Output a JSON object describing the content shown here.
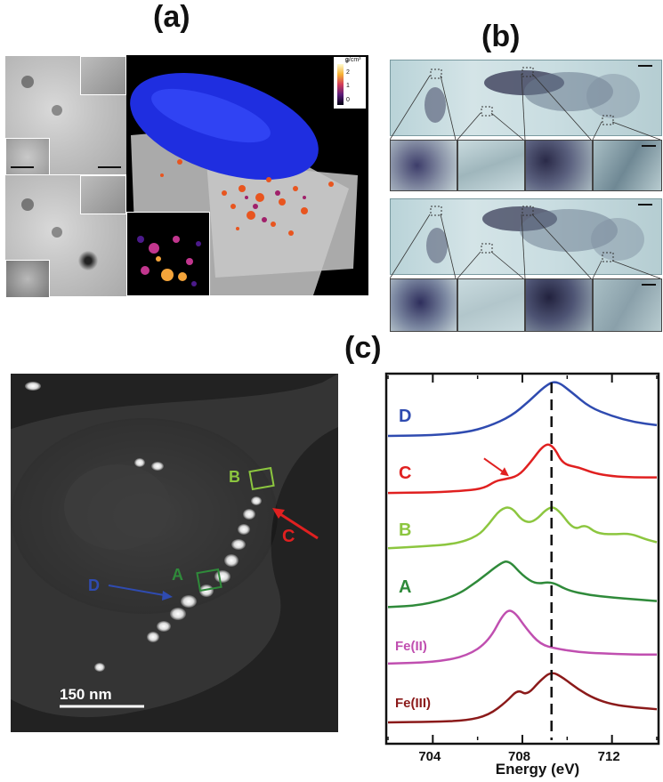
{
  "panels": {
    "a": {
      "letter": "(a)"
    },
    "b": {
      "letter": "(b)"
    },
    "c": {
      "letter": "(c)"
    }
  },
  "panel_a": {
    "colorbar": {
      "unit": "g/cm³",
      "ticks": [
        "3",
        "2",
        "1",
        "0"
      ]
    }
  },
  "panel_c_image": {
    "scale_bar": "150 nm",
    "labels": {
      "A": "A",
      "B": "B",
      "C": "C",
      "D": "D"
    },
    "colors": {
      "A": "#2f8a3a",
      "B": "#8cc63f",
      "C": "#e02020",
      "D": "#2f4bb0"
    }
  },
  "chart_data": {
    "type": "line",
    "xlabel": "Energy (eV)",
    "xlim": [
      702,
      714
    ],
    "x_ticks": [
      704,
      708,
      712
    ],
    "vertical_dashed_line_x": 709.3,
    "grid": false,
    "series": [
      {
        "name": "D",
        "color": "#2f4bb0",
        "offset": 5,
        "points": [
          [
            702,
            0.02
          ],
          [
            704,
            0.03
          ],
          [
            705.5,
            0.08
          ],
          [
            706.5,
            0.18
          ],
          [
            707.5,
            0.35
          ],
          [
            708.3,
            0.6
          ],
          [
            709.0,
            0.85
          ],
          [
            709.5,
            0.95
          ],
          [
            710.2,
            0.75
          ],
          [
            711,
            0.5
          ],
          [
            712,
            0.35
          ],
          [
            713,
            0.25
          ],
          [
            714,
            0.2
          ]
        ]
      },
      {
        "name": "C",
        "color": "#e02020",
        "offset": 4,
        "points": [
          [
            702,
            0.02
          ],
          [
            704,
            0.03
          ],
          [
            705.5,
            0.06
          ],
          [
            706.3,
            0.1
          ],
          [
            706.8,
            0.22
          ],
          [
            707.2,
            0.25
          ],
          [
            707.8,
            0.3
          ],
          [
            708.3,
            0.5
          ],
          [
            709.0,
            0.85
          ],
          [
            709.4,
            0.8
          ],
          [
            709.8,
            0.5
          ],
          [
            710.5,
            0.45
          ],
          [
            711.2,
            0.35
          ],
          [
            712,
            0.3
          ],
          [
            713,
            0.28
          ],
          [
            714,
            0.28
          ]
        ]
      },
      {
        "name": "B",
        "color": "#8cc63f",
        "offset": 3,
        "points": [
          [
            702,
            0.05
          ],
          [
            703.5,
            0.08
          ],
          [
            705,
            0.12
          ],
          [
            706,
            0.25
          ],
          [
            706.5,
            0.45
          ],
          [
            707,
            0.7
          ],
          [
            707.5,
            0.75
          ],
          [
            708,
            0.5
          ],
          [
            708.5,
            0.48
          ],
          [
            709.2,
            0.75
          ],
          [
            709.6,
            0.7
          ],
          [
            710.3,
            0.35
          ],
          [
            710.8,
            0.45
          ],
          [
            711.3,
            0.3
          ],
          [
            712,
            0.28
          ],
          [
            712.8,
            0.3
          ],
          [
            713.5,
            0.2
          ],
          [
            714,
            0.15
          ]
        ]
      },
      {
        "name": "A",
        "color": "#2f8a3a",
        "offset": 2,
        "points": [
          [
            702,
            0.02
          ],
          [
            703.5,
            0.05
          ],
          [
            705,
            0.2
          ],
          [
            706,
            0.45
          ],
          [
            707,
            0.75
          ],
          [
            707.4,
            0.8
          ],
          [
            708,
            0.55
          ],
          [
            708.6,
            0.4
          ],
          [
            709.3,
            0.45
          ],
          [
            710,
            0.3
          ],
          [
            711,
            0.22
          ],
          [
            712,
            0.18
          ],
          [
            713,
            0.15
          ],
          [
            714,
            0.12
          ]
        ]
      },
      {
        "name": "Fe(II)",
        "color": "#c04fb0",
        "offset": 1,
        "points": [
          [
            702,
            0.03
          ],
          [
            704,
            0.05
          ],
          [
            705.5,
            0.15
          ],
          [
            706.5,
            0.4
          ],
          [
            707.2,
            0.9
          ],
          [
            707.6,
            0.92
          ],
          [
            708.2,
            0.6
          ],
          [
            708.8,
            0.35
          ],
          [
            709.5,
            0.28
          ],
          [
            710.5,
            0.22
          ],
          [
            711.5,
            0.2
          ],
          [
            713,
            0.18
          ],
          [
            714,
            0.18
          ]
        ]
      },
      {
        "name": "Fe(III)",
        "color": "#8b1a1a",
        "offset": 0,
        "points": [
          [
            702,
            0.0
          ],
          [
            704,
            0.01
          ],
          [
            705.5,
            0.03
          ],
          [
            706.5,
            0.12
          ],
          [
            707.3,
            0.35
          ],
          [
            707.8,
            0.55
          ],
          [
            708.2,
            0.45
          ],
          [
            708.8,
            0.7
          ],
          [
            709.3,
            0.85
          ],
          [
            709.8,
            0.75
          ],
          [
            710.5,
            0.55
          ],
          [
            711.2,
            0.4
          ],
          [
            712,
            0.3
          ],
          [
            713,
            0.25
          ],
          [
            714,
            0.22
          ]
        ]
      }
    ]
  }
}
